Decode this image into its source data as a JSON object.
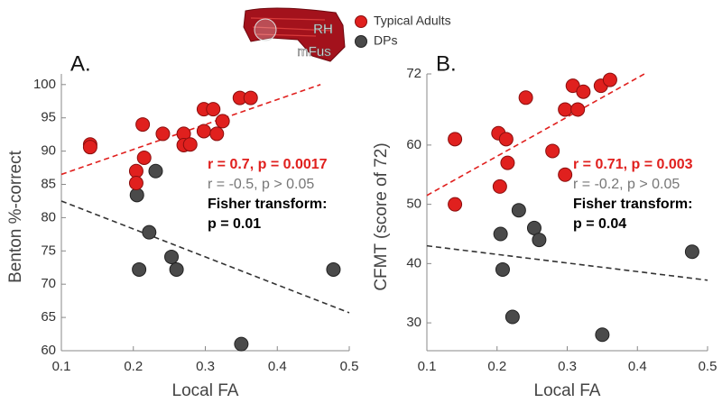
{
  "brain_label": [
    "RH",
    "mFus"
  ],
  "chart_data": [
    {
      "type": "scatter",
      "panel_label": "A.",
      "xlabel": "Local FA",
      "ylabel": "Benton %-correct",
      "xlim": [
        0.1,
        0.5
      ],
      "xticks": [
        0.1,
        0.2,
        0.3,
        0.4,
        0.5
      ],
      "ylim": [
        60,
        101.6
      ],
      "yticks": [
        60,
        65,
        70,
        75,
        80,
        85,
        90,
        95,
        100
      ],
      "series": [
        {
          "name": "Typical Adults",
          "color": "#e0201e",
          "x": [
            0.14,
            0.14,
            0.204,
            0.204,
            0.213,
            0.215,
            0.241,
            0.27,
            0.27,
            0.279,
            0.298,
            0.298,
            0.311,
            0.316,
            0.324,
            0.348,
            0.363
          ],
          "y": [
            91,
            90.6,
            87,
            85.2,
            94,
            89,
            92.6,
            92.6,
            90.9,
            91,
            96.3,
            93,
            96.3,
            92.6,
            94.5,
            98,
            98
          ]
        },
        {
          "name": "DPs",
          "color": "#4a4a4a",
          "x": [
            0.205,
            0.208,
            0.222,
            0.231,
            0.253,
            0.26,
            0.35,
            0.478
          ],
          "y": [
            83.4,
            72.2,
            77.8,
            87,
            74.1,
            72.2,
            61,
            72.2
          ]
        }
      ],
      "trend_lines": [
        {
          "color": "#e0201e",
          "x": [
            0.1,
            0.46
          ],
          "y": [
            86.5,
            100
          ]
        },
        {
          "color": "#333333",
          "x": [
            0.1,
            0.5
          ],
          "y": [
            82.5,
            65.7
          ]
        }
      ],
      "annotations": [
        {
          "text": "r = 0.7, p = 0.0017",
          "color": "#e0201e",
          "bold": true
        },
        {
          "text": "r = -0.5, p > 0.05",
          "color": "#777777",
          "bold": false
        },
        {
          "text": "Fisher transform:",
          "color": "#000000",
          "bold": true
        },
        {
          "text": "p = 0.01",
          "color": "#000000",
          "bold": true
        }
      ]
    },
    {
      "type": "scatter",
      "panel_label": "B.",
      "xlabel": "Local FA",
      "ylabel": "CFMT (score of 72)",
      "xlim": [
        0.1,
        0.5
      ],
      "xticks": [
        0.1,
        0.2,
        0.3,
        0.4,
        0.5
      ],
      "ylim": [
        25.3,
        72
      ],
      "yticks": [
        30,
        40,
        50,
        60,
        72
      ],
      "series": [
        {
          "color": "#e0201e",
          "x": [
            0.14,
            0.14,
            0.202,
            0.213,
            0.215,
            0.204,
            0.241,
            0.279,
            0.297,
            0.297,
            0.308,
            0.315,
            0.323,
            0.348,
            0.361
          ],
          "y": [
            61,
            50,
            62,
            61,
            57,
            53,
            68,
            59,
            55,
            66,
            70,
            66,
            69,
            70,
            71
          ]
        },
        {
          "color": "#4a4a4a",
          "x": [
            0.205,
            0.208,
            0.222,
            0.231,
            0.253,
            0.26,
            0.35,
            0.478
          ],
          "y": [
            45,
            39,
            31,
            49,
            46,
            44,
            28,
            42
          ]
        }
      ],
      "trend_lines": [
        {
          "color": "#e0201e",
          "x": [
            0.1,
            0.41
          ],
          "y": [
            51.5,
            72
          ]
        },
        {
          "color": "#333333",
          "x": [
            0.1,
            0.5
          ],
          "y": [
            43,
            37.2
          ]
        }
      ],
      "annotations": [
        {
          "text": "r = 0.71, p = 0.003",
          "color": "#e0201e",
          "bold": true
        },
        {
          "text": "r = -0.2, p > 0.05",
          "color": "#777777",
          "bold": false
        },
        {
          "text": "Fisher transform:",
          "color": "#000000",
          "bold": true
        },
        {
          "text": "p = 0.04",
          "color": "#000000",
          "bold": true
        }
      ]
    }
  ]
}
